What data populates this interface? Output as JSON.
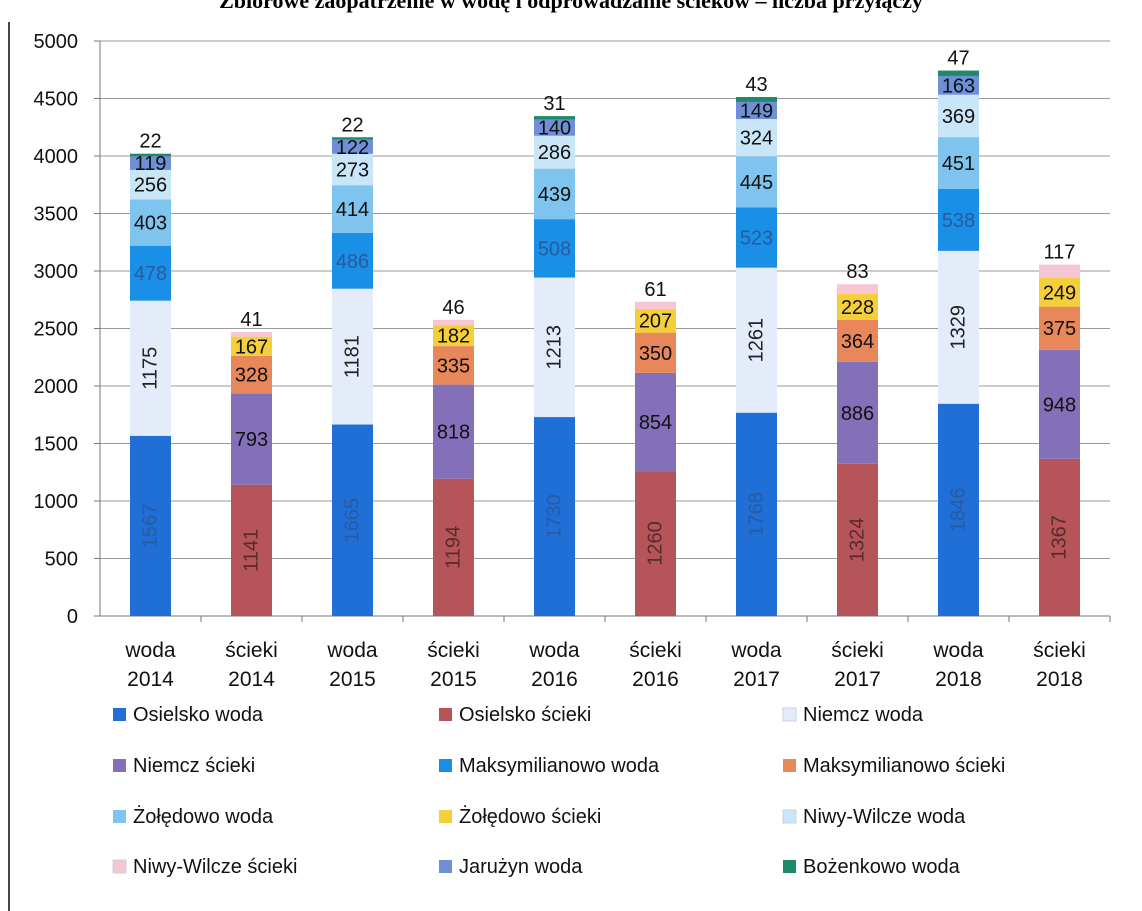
{
  "chart_data": {
    "type": "bar",
    "stacked": true,
    "title": "Zbiorowe zaopatrzenie w wodę i odprowadzanie ścieków – liczba przyłączy",
    "xlabel": "",
    "ylabel": "",
    "ylim": [
      0,
      5000
    ],
    "yticks": [
      "0",
      "500",
      "1000",
      "1500",
      "2000",
      "2500",
      "3000",
      "3500",
      "4000",
      "4500",
      "5000"
    ],
    "ytick_values": [
      0,
      500,
      1000,
      1500,
      2000,
      2500,
      3000,
      3500,
      4000,
      4500,
      5000
    ],
    "grid": true,
    "legend_position": "bottom",
    "categories": [
      [
        "woda",
        "2014"
      ],
      [
        "ścieki",
        "2014"
      ],
      [
        "woda",
        "2015"
      ],
      [
        "ścieki",
        "2015"
      ],
      [
        "woda",
        "2016"
      ],
      [
        "ścieki",
        "2016"
      ],
      [
        "woda",
        "2017"
      ],
      [
        "ścieki",
        "2017"
      ],
      [
        "woda",
        "2018"
      ],
      [
        "ścieki",
        "2018"
      ]
    ],
    "series": [
      {
        "name": "Osielsko woda",
        "color": "#1f6fd6",
        "label_rotated": true,
        "values": [
          1567,
          null,
          1665,
          null,
          1730,
          null,
          1768,
          null,
          1846,
          null
        ]
      },
      {
        "name": "Osielsko ścieki",
        "color": "#b5555a",
        "label_rotated": true,
        "values": [
          null,
          1141,
          null,
          1194,
          null,
          1260,
          null,
          1324,
          null,
          1367
        ]
      },
      {
        "name": "Niemcz woda",
        "color": "#e4ecfa",
        "label_rotated": true,
        "values": [
          1175,
          null,
          1181,
          null,
          1213,
          null,
          1261,
          null,
          1329,
          null
        ]
      },
      {
        "name": "Niemcz ścieki",
        "color": "#8470b8",
        "values": [
          null,
          793,
          null,
          818,
          null,
          854,
          null,
          886,
          null,
          948
        ]
      },
      {
        "name": "Maksymilianowo woda",
        "color": "#1a8fe6",
        "values": [
          478,
          null,
          486,
          null,
          508,
          null,
          523,
          null,
          538,
          null
        ]
      },
      {
        "name": "Maksymilianowo ścieki",
        "color": "#e8875a",
        "values": [
          null,
          328,
          null,
          335,
          null,
          350,
          null,
          364,
          null,
          375
        ]
      },
      {
        "name": "Żołędowo woda",
        "color": "#7fc4ef",
        "values": [
          403,
          null,
          414,
          null,
          439,
          null,
          445,
          null,
          451,
          null
        ]
      },
      {
        "name": "Żołędowo ścieki",
        "color": "#f5cf3a",
        "values": [
          null,
          167,
          null,
          182,
          null,
          207,
          null,
          228,
          null,
          249
        ]
      },
      {
        "name": "Niwy-Wilcze woda",
        "color": "#c9e5f8",
        "values": [
          256,
          null,
          273,
          null,
          286,
          null,
          324,
          null,
          369,
          null
        ]
      },
      {
        "name": "Niwy-Wilcze ścieki",
        "color": "#f6c6d2",
        "values": [
          null,
          41,
          null,
          46,
          null,
          61,
          null,
          83,
          null,
          117
        ]
      },
      {
        "name": "Jarużyn woda",
        "color": "#6f8fd6",
        "values": [
          119,
          null,
          122,
          null,
          140,
          null,
          149,
          null,
          163,
          null
        ]
      },
      {
        "name": "Bożenkowo woda",
        "color": "#1f8a6a",
        "values": [
          22,
          null,
          22,
          null,
          31,
          null,
          43,
          null,
          47,
          null
        ]
      }
    ]
  }
}
